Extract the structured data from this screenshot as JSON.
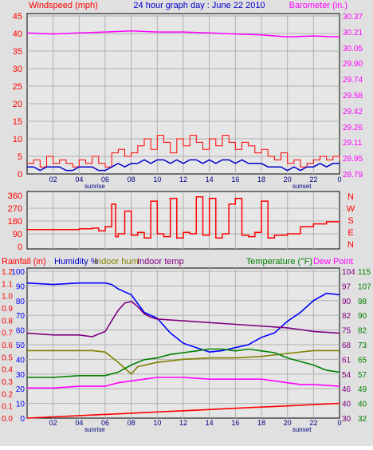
{
  "title": "24 hour graph day : June 22 2010",
  "colors": {
    "windspeed": "#ff0000",
    "wind_avg": "#0000cc",
    "barometer": "#ff00ff",
    "direction": "#ff0000",
    "humidity": "#0000ff",
    "indoor_hum": "#808000",
    "indoor_temp": "#800080",
    "temperature": "#008000",
    "dew_point": "#ff00ff",
    "rainfall": "#ff0000",
    "grid": "#b0b0b0",
    "plot_bg": "#e6e6e6"
  },
  "chart_data": [
    {
      "type": "line",
      "title": "24 hour graph day : June 22 2010",
      "ylabel": "Windspeed (mph)",
      "ylabel_right": "Barometer (in.)",
      "x_ticks": [
        "02",
        "04",
        "06",
        "08",
        "10",
        "12",
        "14",
        "16",
        "18",
        "20",
        "22",
        "0"
      ],
      "x_markers": {
        "sunrise": 5.2,
        "sunset": 21.1
      },
      "y_ticks": [
        "0",
        "5",
        "10",
        "15",
        "20",
        "25",
        "30",
        "35",
        "40",
        "45"
      ],
      "ylim": [
        0,
        45
      ],
      "y_ticks_right": [
        "28.79",
        "28.95",
        "29.11",
        "29.26",
        "29.42",
        "29.58",
        "29.74",
        "29.90",
        "30.05",
        "30.21",
        "30.37"
      ],
      "ylim_right": [
        28.79,
        30.37
      ],
      "grid": true,
      "series": [
        {
          "name": "Windspeed",
          "axis": "left",
          "step": true,
          "x": [
            0,
            0.5,
            1,
            1.5,
            2,
            2.5,
            3,
            3.5,
            4,
            4.5,
            5,
            5.5,
            6,
            6.5,
            7,
            7.5,
            8,
            8.5,
            9,
            9.5,
            10,
            10.5,
            11,
            11.5,
            12,
            12.5,
            13,
            13.5,
            14,
            14.5,
            15,
            15.5,
            16,
            16.5,
            17,
            17.5,
            18,
            18.5,
            19,
            19.5,
            20,
            20.5,
            21,
            21.5,
            22,
            22.5,
            23,
            23.5,
            24
          ],
          "values": [
            3,
            4,
            2,
            5,
            3,
            4,
            3,
            2,
            4,
            3,
            5,
            3,
            2,
            6,
            7,
            5,
            6,
            8,
            10,
            7,
            11,
            9,
            6,
            10,
            8,
            11,
            9,
            7,
            10,
            8,
            11,
            9,
            7,
            9,
            8,
            6,
            7,
            5,
            4,
            6,
            3,
            4,
            2,
            3,
            4,
            5,
            4,
            5,
            4
          ]
        },
        {
          "name": "Average wind",
          "axis": "left",
          "x": [
            0,
            0.5,
            1,
            1.5,
            2,
            2.5,
            3,
            3.5,
            4,
            4.5,
            5,
            5.5,
            6,
            6.5,
            7,
            7.5,
            8,
            8.5,
            9,
            9.5,
            10,
            10.5,
            11,
            11.5,
            12,
            12.5,
            13,
            13.5,
            14,
            14.5,
            15,
            15.5,
            16,
            16.5,
            17,
            17.5,
            18,
            18.5,
            19,
            19.5,
            20,
            20.5,
            21,
            21.5,
            22,
            22.5,
            23,
            23.5,
            24
          ],
          "values": [
            2,
            2,
            1,
            2,
            2,
            2,
            1,
            1,
            2,
            2,
            2,
            1,
            1,
            2,
            3,
            2,
            3,
            3,
            4,
            3,
            4,
            4,
            3,
            4,
            3,
            4,
            4,
            3,
            4,
            3,
            4,
            4,
            3,
            4,
            3,
            3,
            3,
            2,
            2,
            2,
            1,
            2,
            1,
            2,
            2,
            3,
            2,
            3,
            3
          ]
        },
        {
          "name": "Barometer",
          "axis": "right",
          "x": [
            0,
            2,
            4,
            6,
            8,
            10,
            12,
            14,
            16,
            18,
            20,
            22,
            24
          ],
          "values": [
            30.2,
            30.19,
            30.2,
            30.21,
            30.22,
            30.21,
            30.21,
            30.2,
            30.19,
            30.18,
            30.16,
            30.17,
            30.16
          ]
        }
      ]
    },
    {
      "type": "scatter",
      "ylabel_right_letters": [
        "N",
        "W",
        "S",
        "E",
        "N"
      ],
      "y_ticks": [
        "0",
        "90",
        "180",
        "270",
        "360"
      ],
      "ylim": [
        0,
        360
      ],
      "grid": true,
      "series": [
        {
          "name": "Wind direction",
          "step": true,
          "x": [
            0,
            2,
            4,
            5,
            5.5,
            6,
            6.5,
            6.8,
            7,
            7.5,
            8,
            8.5,
            9,
            9.5,
            10,
            10.5,
            11,
            11.5,
            12,
            12.5,
            13,
            13.5,
            14,
            14.5,
            15,
            15.5,
            16,
            16.5,
            17,
            17.5,
            18,
            18.5,
            19,
            20,
            21,
            22,
            23,
            24
          ],
          "values": [
            120,
            120,
            125,
            130,
            110,
            140,
            300,
            70,
            90,
            250,
            80,
            100,
            60,
            320,
            90,
            70,
            340,
            60,
            100,
            90,
            350,
            80,
            340,
            60,
            90,
            300,
            340,
            80,
            70,
            100,
            320,
            60,
            80,
            90,
            140,
            160,
            175,
            180
          ]
        }
      ]
    },
    {
      "type": "line",
      "title_left": "Rainfall (in)",
      "legend_left": [
        "Humidity %",
        "Indoor hum",
        "Indoor temp"
      ],
      "title_right": "Temperature (°F)",
      "legend_right": "Dew Point",
      "y_ticks_left_outer": [
        "0.0",
        "0.1",
        "0.2",
        "0.3",
        "0.4",
        "0.5",
        "0.6",
        "0.7",
        "0.8",
        "0.9",
        "1.0",
        "1.1",
        "1.2"
      ],
      "ylim_left_outer": [
        0,
        1.2
      ],
      "y_ticks_left_inner": [
        "0",
        "10",
        "20",
        "30",
        "40",
        "50",
        "60",
        "70",
        "80",
        "90",
        "100"
      ],
      "ylim_left_inner": [
        0,
        100
      ],
      "y_ticks_right_inner": [
        "30",
        "40",
        "46",
        "54",
        "61",
        "68",
        "75",
        "82",
        "90",
        "97",
        "104"
      ],
      "y_ticks_right_outer": [
        "32",
        "40",
        "49",
        "57",
        "65",
        "73",
        "82",
        "90",
        "98",
        "107",
        "115"
      ],
      "ylim_right_outer": [
        32,
        115
      ],
      "grid": true,
      "series": [
        {
          "name": "Humidity",
          "axis": "left",
          "x": [
            0,
            2,
            4,
            6,
            6.5,
            7,
            7.5,
            8,
            8.5,
            9,
            10,
            11,
            12,
            13,
            14,
            15,
            16,
            17,
            18,
            19,
            20,
            21,
            22,
            23,
            24
          ],
          "values": [
            92,
            91,
            92,
            92,
            91,
            88,
            86,
            84,
            78,
            72,
            68,
            58,
            51,
            48,
            45,
            46,
            48,
            50,
            55,
            58,
            66,
            72,
            80,
            85,
            84
          ]
        },
        {
          "name": "Indoor hum",
          "axis": "left",
          "x": [
            0,
            2,
            4,
            5,
            6,
            7,
            8,
            8.5,
            10,
            12,
            14,
            16,
            18,
            20,
            22,
            24
          ],
          "values": [
            46,
            46,
            46,
            46,
            45,
            38,
            30,
            35,
            38,
            40,
            41,
            41,
            42,
            44,
            46,
            46
          ]
        },
        {
          "name": "Indoor temp",
          "axis": "right_outer",
          "x": [
            0,
            2,
            4,
            5,
            6,
            7,
            7.5,
            8,
            8.5,
            9,
            9.5,
            10,
            12,
            14,
            16,
            18,
            20,
            22,
            24
          ],
          "values": [
            80,
            79,
            79,
            78,
            81,
            93,
            97,
            98,
            95,
            91,
            89,
            88,
            87,
            86,
            85,
            84,
            83,
            81,
            80
          ]
        },
        {
          "name": "Temperature",
          "axis": "right_outer",
          "x": [
            0,
            2,
            4,
            6,
            7,
            8,
            9,
            10,
            11,
            12,
            13,
            14,
            15,
            16,
            17,
            18,
            19,
            20,
            21,
            22,
            23,
            24
          ],
          "values": [
            55,
            55,
            56,
            56,
            58,
            62,
            65,
            66,
            68,
            69,
            70,
            71,
            71,
            70,
            71,
            70,
            69,
            66,
            64,
            62,
            59,
            58
          ]
        },
        {
          "name": "Dew Point",
          "axis": "right_outer",
          "x": [
            0,
            2,
            4,
            6,
            7,
            8,
            9,
            10,
            12,
            14,
            16,
            18,
            19,
            20,
            21,
            22,
            24
          ],
          "values": [
            49,
            49,
            50,
            50,
            52,
            53,
            54,
            55,
            55,
            54,
            54,
            54,
            53,
            52,
            51,
            51,
            50
          ]
        },
        {
          "name": "Rainfall",
          "axis": "left_outer",
          "x": [
            0,
            2,
            4,
            6,
            8,
            10,
            12,
            14,
            16,
            18,
            20,
            22,
            24
          ],
          "values": [
            0.0,
            0.01,
            0.02,
            0.03,
            0.04,
            0.05,
            0.06,
            0.07,
            0.08,
            0.09,
            0.1,
            0.11,
            0.12
          ]
        }
      ]
    }
  ]
}
